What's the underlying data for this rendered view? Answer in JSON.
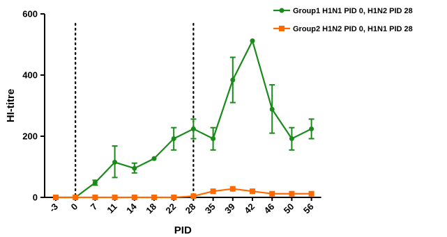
{
  "chart_data": {
    "type": "line",
    "title": "",
    "xlabel": "PID",
    "ylabel": "HI-titre",
    "ylim": [
      0,
      600
    ],
    "yticks": [
      0,
      200,
      400,
      600
    ],
    "categories": [
      "-3",
      "0",
      "7",
      "11",
      "14",
      "18",
      "22",
      "28",
      "35",
      "39",
      "42",
      "46",
      "50",
      "56"
    ],
    "vlines_at": [
      "0",
      "28"
    ],
    "legend_position": "top-right",
    "series": [
      {
        "name": "Group1 H1N1 PID 0, H1N2 PID 28",
        "color": "#1a8a1a",
        "marker": "circle",
        "values": [
          0,
          0,
          48,
          115,
          95,
          127,
          192,
          224,
          192,
          384,
          512,
          288,
          192,
          224
        ],
        "err_low": [
          0,
          0,
          40,
          65,
          80,
          127,
          155,
          192,
          155,
          310,
          512,
          210,
          155,
          192
        ],
        "err_high": [
          0,
          0,
          56,
          168,
          112,
          127,
          228,
          256,
          228,
          458,
          512,
          368,
          228,
          256
        ]
      },
      {
        "name": "Group2 H1N2 PID 0, H1N1 PID 28",
        "color": "#ff6a00",
        "marker": "square",
        "values": [
          0,
          0,
          0,
          0,
          0,
          0,
          0,
          4,
          20,
          28,
          20,
          12,
          12,
          12
        ]
      }
    ]
  }
}
